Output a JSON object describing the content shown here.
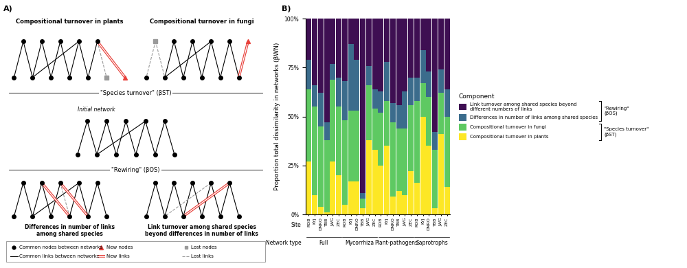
{
  "panel_a": {
    "label": "A)",
    "species_turnover": {
      "label": "\"Species turnover\" (βST)",
      "plants": "Compositional turnover in plants",
      "fungi": "Compositional turnover in fungi"
    },
    "initial_network": "Initial network",
    "rewiring": {
      "label": "\"Rewiring\" (βOS)",
      "links_number": "Differences in number of links\namong shared species",
      "link_turnover": "Link turnover among shared species\nbeyond differences in number of links"
    },
    "legend": {
      "common_nodes": "Common nodes between networks",
      "new_nodes": "New nodes",
      "lost_nodes": "Lost nodes",
      "common_links": "Common links between networks",
      "new_links": "New links",
      "lost_links": "Lost links"
    }
  },
  "panel_b": {
    "label": "B)"
  },
  "chart_data": {
    "type": "bar",
    "stacked": true,
    "y_label": "Proportion total dissimilarity in networks (βWN)",
    "x_label": "Site",
    "group_label": "Network type",
    "groups": [
      "Full",
      "Mycorrhiza",
      "Plant-pathogens",
      "Saprotrophs"
    ],
    "categories": [
      "ROB",
      "KYJ",
      "DNRO",
      "TBB",
      "JWG",
      "ZEC",
      "ROB",
      "KYJ",
      "DNRO",
      "TBB",
      "JWG",
      "ZEC",
      "ROB",
      "KYJ",
      "DNRO",
      "TBB",
      "JWG",
      "ZEC",
      "ROB",
      "KYJ",
      "DNRO",
      "TBB",
      "JWG",
      "ZEC"
    ],
    "series": [
      {
        "name": "Compositional turnover in plants",
        "color": "#fde725",
        "values": [
          27,
          10,
          4,
          1,
          27,
          20,
          5,
          17,
          17,
          3,
          38,
          33,
          25,
          35,
          9,
          12,
          10,
          22,
          16,
          50,
          35,
          3,
          41,
          14
        ]
      },
      {
        "name": "Compositional turnover in fungi",
        "color": "#5ec962",
        "values": [
          37,
          45,
          41,
          37,
          42,
          35,
          43,
          36,
          36,
          5,
          28,
          21,
          27,
          23,
          38,
          32,
          34,
          34,
          42,
          17,
          25,
          30,
          21,
          36
        ]
      },
      {
        "name": "Differences in number of links among shared species",
        "color": "#3b6c8c",
        "values": [
          15,
          11,
          17,
          9,
          8,
          15,
          20,
          34,
          26,
          3,
          10,
          10,
          11,
          20,
          10,
          12,
          19,
          14,
          12,
          17,
          13,
          9,
          12,
          14
        ]
      },
      {
        "name": "Link turnover among shared species beyond\ndifferent numbers of links",
        "color": "#3e0f52",
        "values": [
          21,
          34,
          38,
          53,
          23,
          30,
          32,
          13,
          21,
          89,
          24,
          36,
          37,
          22,
          43,
          44,
          37,
          30,
          30,
          16,
          27,
          58,
          26,
          36
        ]
      }
    ],
    "ylim": [
      0,
      100
    ],
    "yticks": [
      {
        "value": 0,
        "label": "0%"
      },
      {
        "value": 25,
        "label": "25%"
      },
      {
        "value": 50,
        "label": "50%"
      },
      {
        "value": 75,
        "label": "75%"
      },
      {
        "value": 100,
        "label": "100%"
      }
    ],
    "legend": "center left",
    "legend_title": "Component",
    "component_groups": [
      {
        "label": "\"Rewiring\"\n(βOS)",
        "series": [
          "Link turnover among shared species beyond\ndifferent numbers of links",
          "Differences in number of links among shared species"
        ]
      },
      {
        "label": "\"Species turnover\"\n(βST)",
        "series": [
          "Compositional turnover in fungi",
          "Compositional turnover in plants"
        ]
      }
    ]
  }
}
